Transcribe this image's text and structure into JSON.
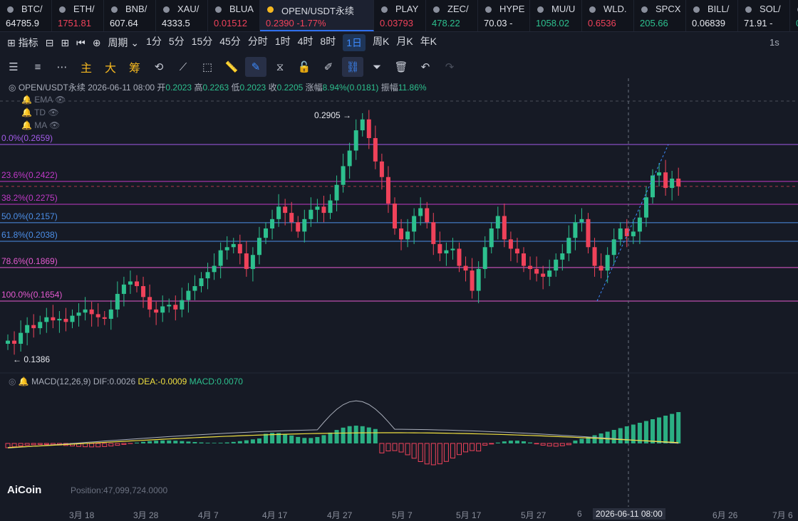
{
  "tickers": [
    {
      "sym": "BTC/",
      "price": "64785.9",
      "dir": "wh"
    },
    {
      "sym": "ETH/",
      "price": "1751.81",
      "dir": "dn"
    },
    {
      "sym": "BNB/",
      "price": "607.64",
      "dir": "wh"
    },
    {
      "sym": "XAU/",
      "price": "4333.5",
      "dir": "wh"
    },
    {
      "sym": "BLUA",
      "price": "0.01512",
      "dir": "dn"
    },
    {
      "sym": "OPEN/USDT永续",
      "price": "0.2390  -1.77%",
      "dir": "dn",
      "active": true
    },
    {
      "sym": "PLAY",
      "price": "0.03793",
      "dir": "dn"
    },
    {
      "sym": "ZEC/",
      "price": "478.22",
      "dir": "up"
    },
    {
      "sym": "HYPE",
      "price": "70.03  -",
      "dir": "wh"
    },
    {
      "sym": "MU/U",
      "price": "1058.02",
      "dir": "up"
    },
    {
      "sym": "WLD.",
      "price": "0.6536",
      "dir": "dn"
    },
    {
      "sym": "SPCX",
      "price": "205.66",
      "dir": "up"
    },
    {
      "sym": "BILL/",
      "price": "0.06839",
      "dir": "wh"
    },
    {
      "sym": "SOL/",
      "price": "71.91  -",
      "dir": "wh"
    },
    {
      "sym": "7",
      "price": "0.02",
      "dir": "up"
    }
  ],
  "toolbar1": {
    "indicator": "指标",
    "period": "周期",
    "intervals": [
      "1分",
      "5分",
      "15分",
      "45分",
      "分时",
      "1时",
      "4时",
      "8时",
      "1日",
      "周K",
      "月K",
      "年K"
    ],
    "selected": "1日",
    "right": "1s"
  },
  "toolbar2": {
    "labels": [
      "主",
      "大",
      "筹"
    ]
  },
  "info": {
    "symbol": "OPEN/USDT永续",
    "datetime": "2026-06-11 08:00",
    "open_l": "开",
    "open": "0.2023",
    "high_l": "高",
    "high": "0.2263",
    "low_l": "低",
    "low": "0.2023",
    "close_l": "收",
    "close": "0.2205",
    "chg_l": "涨幅",
    "chg": "8.94%(0.0181)",
    "amp_l": "振幅",
    "amp": "11.86%"
  },
  "indicators": [
    "EMA",
    "TD",
    "MA"
  ],
  "fib": [
    {
      "label": "0.0%(0.2659)",
      "price": 0.2659,
      "color": "#a25be8"
    },
    {
      "label": "23.6%(0.2422)",
      "price": 0.2422,
      "color": "#c039c7"
    },
    {
      "label": "38.2%(0.2275)",
      "price": 0.2275,
      "color": "#c039c7"
    },
    {
      "label": "50.0%(0.2157)",
      "price": 0.2157,
      "color": "#4c8fe8"
    },
    {
      "label": "61.8%(0.2038)",
      "price": 0.2038,
      "color": "#4c8fe8"
    },
    {
      "label": "78.6%(0.1869)",
      "price": 0.1869,
      "color": "#e45ad0"
    },
    {
      "label": "100.0%(0.1654)",
      "price": 0.1654,
      "color": "#e45ad0"
    }
  ],
  "annot": {
    "high": "0.2905 →",
    "low": "← 0.1386"
  },
  "macd": {
    "title": "MACD(12,26,9)",
    "dif_l": "DIF:",
    "dif": "0.0026",
    "dea_l": "DEA:",
    "dea": "-0.0009",
    "macd_l": "MACD:",
    "macd": "0.0070"
  },
  "position": "Position:47,099,724.0000",
  "logo": "AiCoin",
  "dates": [
    "3月 18",
    "3月 28",
    "4月 7",
    "4月 17",
    "4月 27",
    "5月 7",
    "5月 17",
    "5月 27",
    "6",
    "6月 26",
    "7月 6"
  ],
  "crosshair_date": "2026-06-11 08:00",
  "chart_data": {
    "type": "candlestick",
    "symbol": "OPEN/USDT永续",
    "note": "Values read approximately from daily candles",
    "closes": [
      0.14,
      0.138,
      0.145,
      0.15,
      0.148,
      0.152,
      0.155,
      0.153,
      0.154,
      0.152,
      0.156,
      0.158,
      0.16,
      0.157,
      0.155,
      0.154,
      0.16,
      0.17,
      0.176,
      0.178,
      0.175,
      0.168,
      0.16,
      0.158,
      0.162,
      0.163,
      0.16,
      0.166,
      0.172,
      0.175,
      0.18,
      0.184,
      0.188,
      0.198,
      0.2,
      0.202,
      0.196,
      0.186,
      0.195,
      0.206,
      0.212,
      0.218,
      0.226,
      0.222,
      0.216,
      0.21,
      0.218,
      0.224,
      0.226,
      0.222,
      0.23,
      0.24,
      0.252,
      0.262,
      0.275,
      0.282,
      0.27,
      0.255,
      0.245,
      0.228,
      0.212,
      0.205,
      0.21,
      0.22,
      0.225,
      0.216,
      0.202,
      0.196,
      0.198,
      0.199,
      0.188,
      0.185,
      0.172,
      0.186,
      0.2,
      0.212,
      0.22,
      0.205,
      0.199,
      0.196,
      0.188,
      0.186,
      0.183,
      0.181,
      0.185,
      0.192,
      0.196,
      0.206,
      0.216,
      0.218,
      0.2,
      0.188,
      0.185,
      0.195,
      0.205,
      0.212,
      0.207,
      0.21,
      0.219,
      0.232,
      0.246,
      0.248,
      0.238,
      0.244,
      0.239
    ],
    "macd_hist_sign": "positive early, negative mid-May, positive into June"
  }
}
